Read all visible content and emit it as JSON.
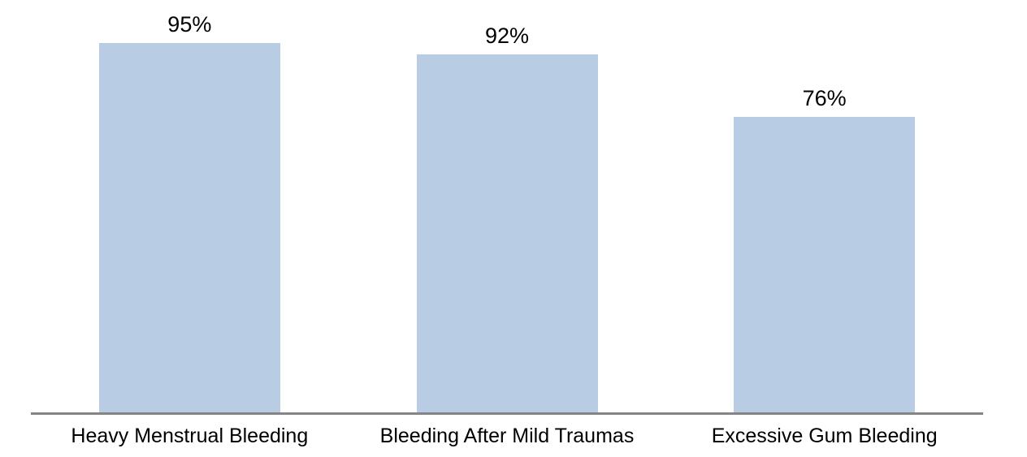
{
  "chart_data": {
    "type": "bar",
    "categories": [
      "Heavy Menstrual Bleeding",
      "Bleeding After Mild Traumas",
      "Excessive Gum Bleeding"
    ],
    "values": [
      95,
      92,
      76
    ],
    "data_labels": [
      "95%",
      "92%",
      "76%"
    ],
    "title": "",
    "xlabel": "",
    "ylabel": "",
    "ylim": [
      0,
      100
    ],
    "grid": false,
    "legend_position": "none",
    "bar_color": "#b8cce4",
    "axis_line_color": "#858585",
    "label_text_color": "#000000"
  }
}
